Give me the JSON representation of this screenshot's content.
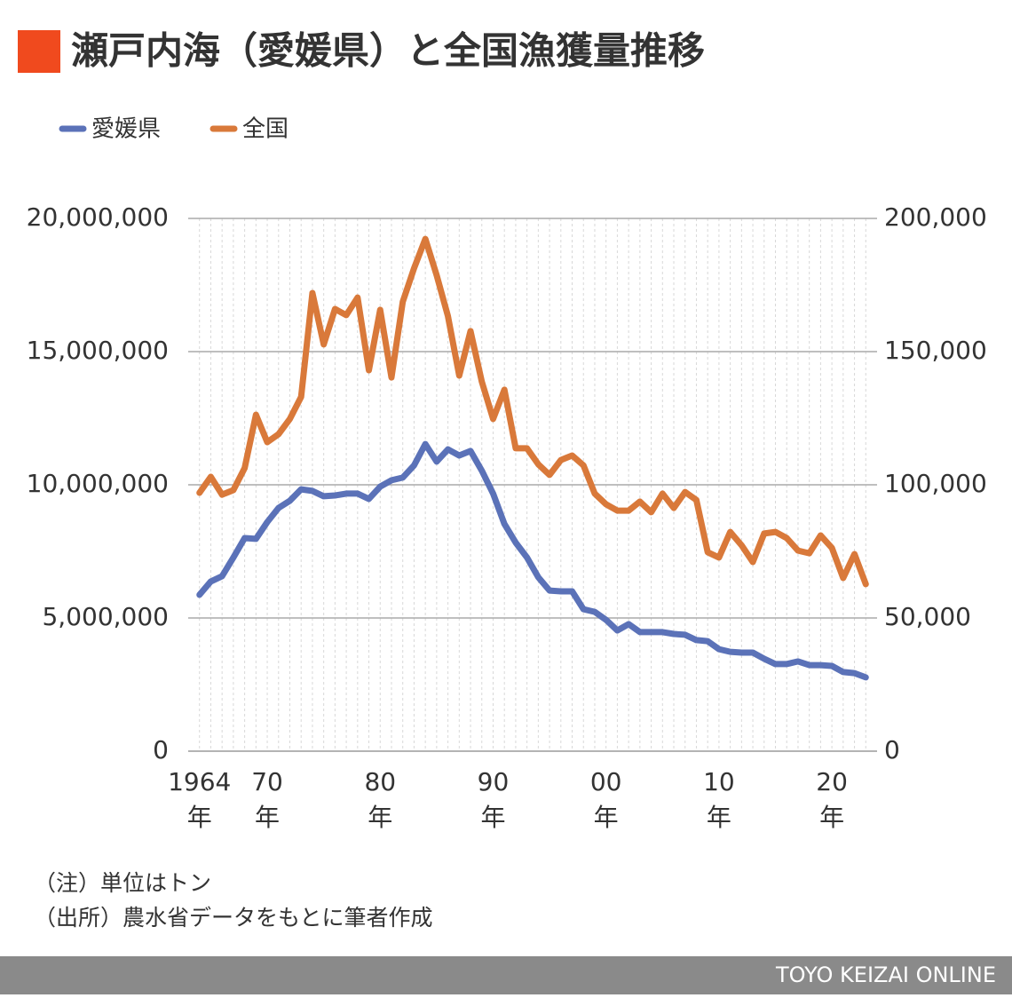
{
  "chart_data": {
    "type": "line",
    "title": "瀬戸内海（愛媛県）と全国漁獲量推移",
    "x": [
      1964,
      1965,
      1966,
      1967,
      1968,
      1969,
      1970,
      1971,
      1972,
      1973,
      1974,
      1975,
      1976,
      1977,
      1978,
      1979,
      1980,
      1981,
      1982,
      1983,
      1984,
      1985,
      1986,
      1987,
      1988,
      1989,
      1990,
      1991,
      1992,
      1993,
      1994,
      1995,
      1996,
      1997,
      1998,
      1999,
      2000,
      2001,
      2002,
      2003,
      2004,
      2005,
      2006,
      2007,
      2008,
      2009,
      2010,
      2011,
      2012,
      2013,
      2014,
      2015,
      2016,
      2017,
      2018,
      2019,
      2020,
      2021,
      2022,
      2023
    ],
    "xlim": [
      1963,
      2024
    ],
    "xticks": [
      {
        "value": 1964,
        "label": "1964\n年"
      },
      {
        "value": 1970,
        "label": "70\n年"
      },
      {
        "value": 1980,
        "label": "80\n年"
      },
      {
        "value": 1990,
        "label": "90\n年"
      },
      {
        "value": 2000,
        "label": "00\n年"
      },
      {
        "value": 2010,
        "label": "10\n年"
      },
      {
        "value": 2020,
        "label": "20\n年"
      }
    ],
    "ylim": [
      0,
      20000000
    ],
    "yticks": [
      0,
      {
        "value": 5000000,
        "label": "5,000,000"
      },
      {
        "value": 10000000,
        "label": "10,000,000"
      },
      {
        "value": 15000000,
        "label": "15,000,000"
      },
      {
        "value": 20000000,
        "label": "20,000,000"
      }
    ],
    "y2lim": [
      0,
      200000
    ],
    "y2ticks": [
      0,
      {
        "value": 50000,
        "label": "50,000"
      },
      {
        "value": 100000,
        "label": "100,000"
      },
      {
        "value": 150000,
        "label": "150,000"
      },
      {
        "value": 200000,
        "label": "200,000"
      }
    ],
    "grid": true,
    "series": [
      {
        "name": "愛媛県",
        "color": "#5b72b8",
        "values": [
          5870000,
          6370000,
          6570000,
          7270000,
          8000000,
          7970000,
          8600000,
          9130000,
          9400000,
          9830000,
          9770000,
          9570000,
          9600000,
          9670000,
          9670000,
          9470000,
          9930000,
          10170000,
          10270000,
          10730000,
          11530000,
          10870000,
          11330000,
          11100000,
          11270000,
          10530000,
          9670000,
          8530000,
          7830000,
          7270000,
          6530000,
          6030000,
          6000000,
          6000000,
          5330000,
          5230000,
          4930000,
          4530000,
          4770000,
          4470000,
          4470000,
          4470000,
          4400000,
          4370000,
          4170000,
          4130000,
          3830000,
          3730000,
          3700000,
          3700000,
          3470000,
          3270000,
          3270000,
          3370000,
          3230000,
          3230000,
          3200000,
          2970000,
          2930000,
          2770000
        ]
      },
      {
        "name": "全国",
        "color": "#d9793a",
        "axis": "y2",
        "values": [
          97000,
          103000,
          96300,
          98000,
          106300,
          126300,
          116000,
          119000,
          124700,
          133000,
          172000,
          152700,
          166000,
          163700,
          170300,
          143000,
          165700,
          140300,
          168700,
          181300,
          192300,
          178700,
          163300,
          141000,
          157700,
          138700,
          124700,
          135700,
          113700,
          113700,
          107700,
          103700,
          109300,
          111000,
          107300,
          96700,
          92700,
          90300,
          90300,
          93700,
          89700,
          96700,
          91300,
          97300,
          94300,
          74700,
          72700,
          82300,
          77300,
          71000,
          81700,
          82300,
          80000,
          75300,
          74300,
          81000,
          76300,
          65000,
          74000,
          62700
        ]
      }
    ]
  },
  "notes": [
    "（注）単位はトン",
    "（出所）農水省データをもとに筆者作成"
  ],
  "footer": "TOYO KEIZAI ONLINE"
}
